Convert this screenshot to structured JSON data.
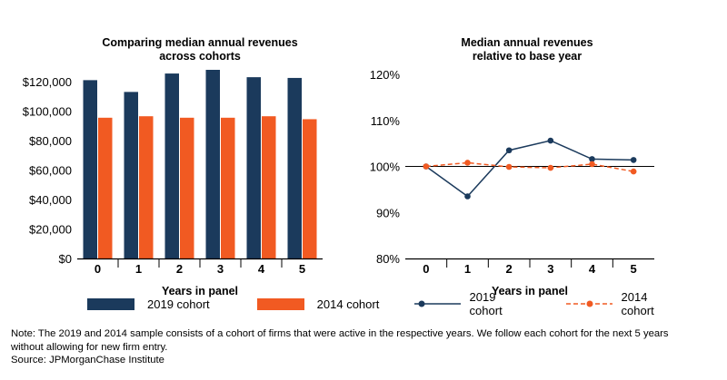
{
  "colors": {
    "cohort_2019": "#1b3a5c",
    "cohort_2014": "#f15a22",
    "axis": "#000000",
    "grid": "#d9d9d9"
  },
  "chart_data": [
    {
      "type": "bar",
      "title": "Comparing median annual revenues across cohorts",
      "title_lines": [
        "Comparing median annual revenues",
        "across cohorts"
      ],
      "categories": [
        "0",
        "1",
        "2",
        "3",
        "4",
        "5"
      ],
      "xlabel": "Years in panel",
      "ylabel": "",
      "ylim": [
        0,
        120000
      ],
      "yticks": [
        0,
        20000,
        40000,
        60000,
        80000,
        100000,
        120000
      ],
      "ytick_labels": [
        "$0",
        "$20,000",
        "$40,000",
        "$60,000",
        "$80,000",
        "$100,000",
        "$120,000"
      ],
      "series": [
        {
          "name": "2019 cohort",
          "values": [
            121000,
            113000,
            125500,
            128000,
            123000,
            122500
          ]
        },
        {
          "name": "2014 cohort",
          "values": [
            95500,
            96500,
            95500,
            95500,
            96500,
            94500
          ]
        }
      ],
      "legend": "bottom"
    },
    {
      "type": "line",
      "title": "Median annual revenues relative to base year",
      "title_lines": [
        "Median annual revenues",
        "relative to base year"
      ],
      "categories": [
        "0",
        "1",
        "2",
        "3",
        "4",
        "5"
      ],
      "xlabel": "Years in panel",
      "ylabel": "",
      "ylim": [
        80,
        120
      ],
      "yticks": [
        80,
        90,
        100,
        110,
        120
      ],
      "ytick_labels": [
        "80%",
        "90%",
        "100%",
        "110%",
        "120%"
      ],
      "reference_line": 100,
      "series": [
        {
          "name": "2019 cohort",
          "values": [
            100,
            93.5,
            103.5,
            105.6,
            101.6,
            101.4
          ],
          "style": "solid"
        },
        {
          "name": "2014 cohort",
          "values": [
            100,
            100.8,
            99.9,
            99.7,
            100.5,
            98.9
          ],
          "style": "dashed"
        }
      ],
      "legend": "bottom"
    }
  ],
  "legend_left": [
    {
      "label": "2019 cohort"
    },
    {
      "label": "2014 cohort"
    }
  ],
  "legend_right": [
    {
      "label": "2019 cohort"
    },
    {
      "label": "2014 cohort"
    }
  ],
  "note": {
    "line1": "Note: The 2019 and 2014 sample consists of a cohort of firms that were active in the respective years. We follow each cohort for the next 5 years",
    "line2": "without allowing for new firm entry.",
    "source": "Source: JPMorganChase Institute"
  }
}
